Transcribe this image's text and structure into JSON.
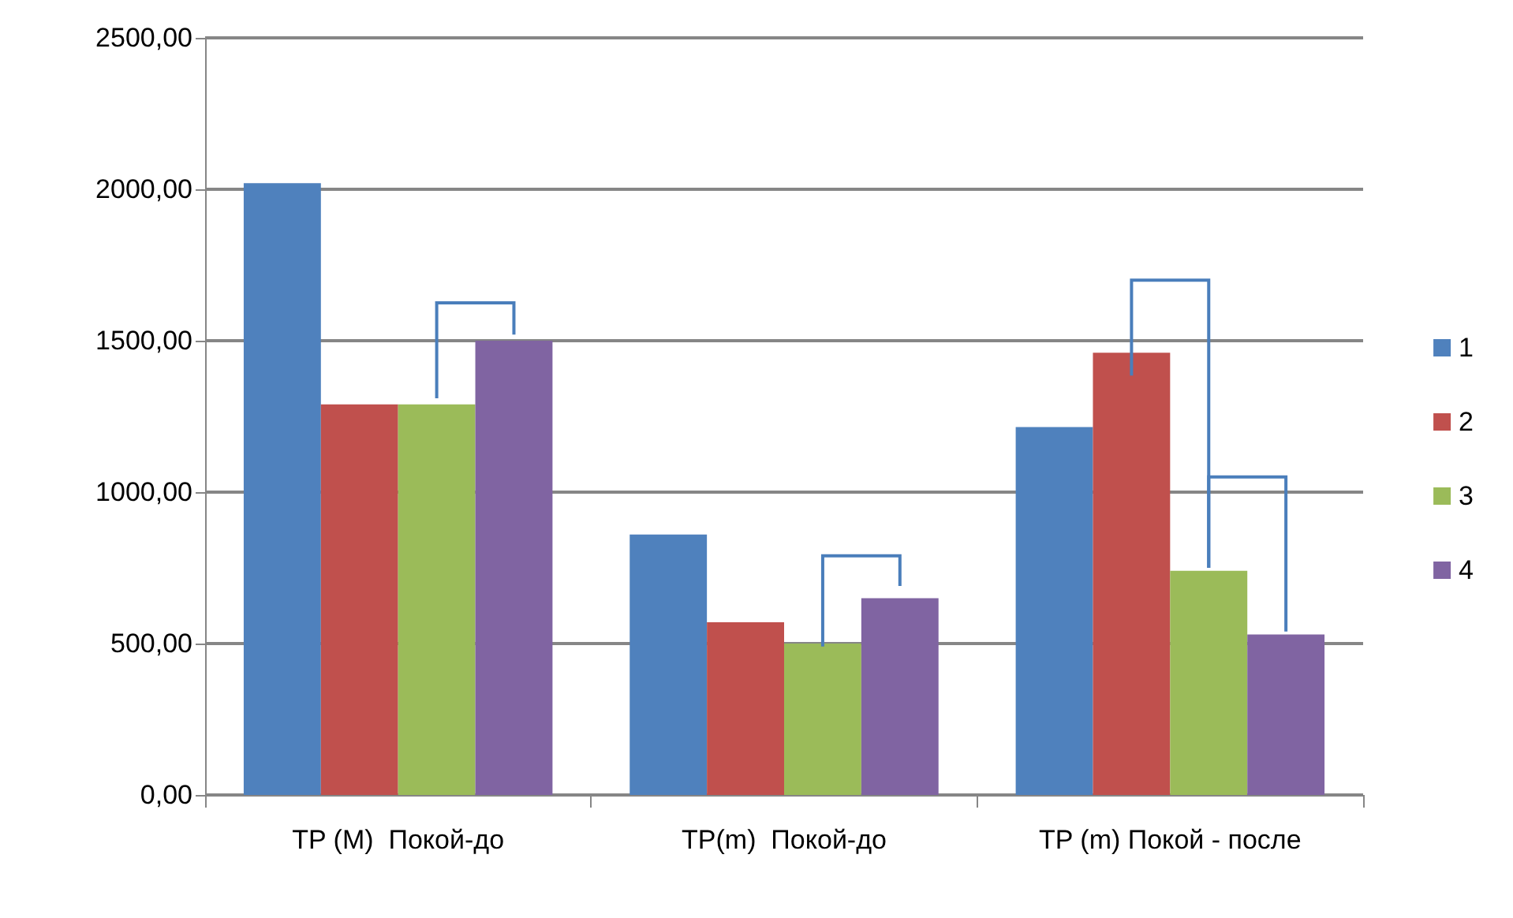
{
  "chart_data": {
    "type": "bar",
    "categories": [
      "TP (M)  Покой-до",
      "TP(m)  Покой-до",
      "TP (m) Покой - после"
    ],
    "series": [
      {
        "name": "1",
        "color": "#4f81bd",
        "values": [
          2020,
          860,
          1215
        ]
      },
      {
        "name": "2",
        "color": "#c0504d",
        "values": [
          1290,
          570,
          1460
        ]
      },
      {
        "name": "3",
        "color": "#9bbb59",
        "values": [
          1290,
          500,
          740
        ]
      },
      {
        "name": "4",
        "color": "#8064a2",
        "values": [
          1500,
          650,
          530
        ]
      }
    ],
    "ylim": [
      0,
      2500
    ],
    "yticks": [
      {
        "value": 0,
        "label": "0,00"
      },
      {
        "value": 500,
        "label": "500,00"
      },
      {
        "value": 1000,
        "label": "1000,00"
      },
      {
        "value": 1500,
        "label": "1500,00"
      },
      {
        "value": 2000,
        "label": "2000,00"
      },
      {
        "value": 2500,
        "label": "2500,00"
      }
    ],
    "grid": "y",
    "legend": "right"
  }
}
